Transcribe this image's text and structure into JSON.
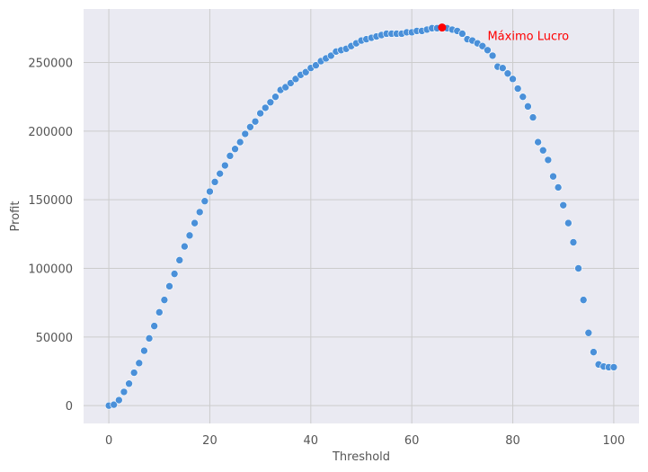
{
  "chart_data": {
    "type": "scatter",
    "xlabel": "Threshold",
    "ylabel": "Profit",
    "xlim": [
      -5,
      105
    ],
    "ylim": [
      -13000,
      289000
    ],
    "xticks": [
      0,
      20,
      40,
      60,
      80,
      100
    ],
    "yticks": [
      0,
      50000,
      100000,
      150000,
      200000,
      250000
    ],
    "grid": true,
    "point_color": "#4a90d9",
    "max_color": "#ff0000",
    "background_color": "#eaeaf2",
    "grid_color": "#cccccc",
    "x": [
      0,
      1,
      2,
      3,
      4,
      5,
      6,
      7,
      8,
      9,
      10,
      11,
      12,
      13,
      14,
      15,
      16,
      17,
      18,
      19,
      20,
      21,
      22,
      23,
      24,
      25,
      26,
      27,
      28,
      29,
      30,
      31,
      32,
      33,
      34,
      35,
      36,
      37,
      38,
      39,
      40,
      41,
      42,
      43,
      44,
      45,
      46,
      47,
      48,
      49,
      50,
      51,
      52,
      53,
      54,
      55,
      56,
      57,
      58,
      59,
      60,
      61,
      62,
      63,
      64,
      65,
      66,
      67,
      68,
      69,
      70,
      71,
      72,
      73,
      74,
      75,
      76,
      77,
      78,
      79,
      80,
      81,
      82,
      83,
      84,
      85,
      86,
      87,
      88,
      89,
      90,
      91,
      92,
      93,
      94,
      95,
      96,
      97,
      98,
      99,
      100
    ],
    "y": [
      0,
      700,
      4000,
      10000,
      16000,
      24000,
      31000,
      40000,
      49000,
      58000,
      68000,
      77000,
      87000,
      96000,
      106000,
      116000,
      124000,
      133000,
      141000,
      149000,
      156000,
      163000,
      169000,
      175000,
      182000,
      187000,
      192000,
      198000,
      203000,
      207000,
      213000,
      217000,
      221000,
      225000,
      230000,
      232000,
      235000,
      238000,
      241000,
      243000,
      246000,
      248000,
      251000,
      253000,
      255000,
      258000,
      259000,
      260000,
      262000,
      264000,
      266000,
      267000,
      268000,
      269000,
      270000,
      271000,
      271000,
      271000,
      271000,
      272000,
      272000,
      273000,
      273000,
      274000,
      275000,
      275000,
      275000,
      275000,
      274000,
      273000,
      271000,
      267000,
      266000,
      264000,
      262000,
      259000,
      255000,
      247000,
      246000,
      242000,
      238000,
      231000,
      225000,
      218000,
      210000,
      192000,
      186000,
      179000,
      167000,
      159000,
      146000,
      133000,
      119000,
      100000,
      77000,
      53000,
      39000,
      30000,
      28500,
      28000,
      28000
    ],
    "max_point": {
      "x": 66,
      "y": 275500
    },
    "annotation": {
      "text": "Máximo Lucro",
      "x": 75,
      "y": 269000
    }
  }
}
